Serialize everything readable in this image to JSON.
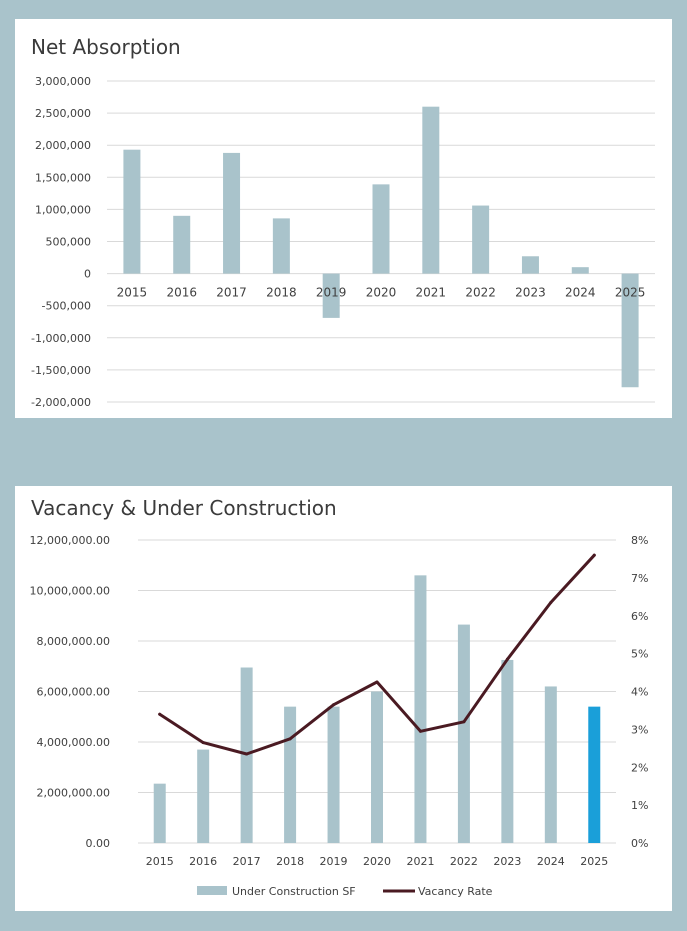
{
  "chart_data": [
    {
      "type": "bar",
      "title": "Net Absorption",
      "categories": [
        "2015",
        "2016",
        "2017",
        "2018",
        "2019",
        "2020",
        "2021",
        "2022",
        "2023",
        "2024",
        "2025"
      ],
      "values": [
        1930000,
        900000,
        1880000,
        860000,
        -690000,
        1390000,
        2600000,
        1060000,
        270000,
        100000,
        -1770000
      ],
      "ylim": [
        -2000000,
        3000000
      ],
      "yticks": [
        "3,000,000",
        "2,500,000",
        "2,000,000",
        "1,500,000",
        "1,000,000",
        "500,000",
        "0",
        "-500,000",
        "-1,000,000",
        "-1,500,000",
        "-2,000,000"
      ],
      "ytick_values": [
        3000000,
        2500000,
        2000000,
        1500000,
        1000000,
        500000,
        0,
        -500000,
        -1000000,
        -1500000,
        -2000000
      ],
      "grid": true,
      "colors": {
        "bar": "#a9c3cb",
        "grid": "#d9d9d9"
      }
    },
    {
      "type": "bar+line",
      "title": "Vacancy & Under Construction",
      "categories": [
        "2015",
        "2016",
        "2017",
        "2018",
        "2019",
        "2020",
        "2021",
        "2022",
        "2023",
        "2024",
        "2025"
      ],
      "series": [
        {
          "name": "Under Construction SF",
          "type": "bar",
          "axis": "left",
          "values": [
            2350000,
            3700000,
            6950000,
            5400000,
            5400000,
            6000000,
            10600000,
            8650000,
            7250000,
            6200000,
            5400000
          ]
        },
        {
          "name": "Vacancy Rate",
          "type": "line",
          "axis": "right",
          "values": [
            3.4,
            2.65,
            2.35,
            2.75,
            3.65,
            4.25,
            2.95,
            3.2,
            4.85,
            6.35,
            7.6
          ]
        }
      ],
      "ylim_left": [
        0,
        12000000
      ],
      "ylim_right": [
        0,
        8
      ],
      "yticks_left": [
        "12,000,000.00",
        "10,000,000.00",
        "8,000,000.00",
        "6,000,000.00",
        "4,000,000.00",
        "2,000,000.00",
        "0.00"
      ],
      "ytick_values_left": [
        12000000,
        10000000,
        8000000,
        6000000,
        4000000,
        2000000,
        0
      ],
      "yticks_right": [
        "8%",
        "7%",
        "6%",
        "5%",
        "4%",
        "3%",
        "2%",
        "1%",
        "0%"
      ],
      "ytick_values_right": [
        8,
        7,
        6,
        5,
        4,
        3,
        2,
        1,
        0
      ],
      "legend": [
        "Under Construction SF",
        "Vacancy Rate"
      ],
      "legend_position": "bottom",
      "grid": true,
      "colors": {
        "bar": "#a9c3cb",
        "highlight_bar": "#1a9fd9",
        "line": "#4a1a22",
        "grid": "#d9d9d9"
      },
      "highlight_index": 10
    }
  ]
}
